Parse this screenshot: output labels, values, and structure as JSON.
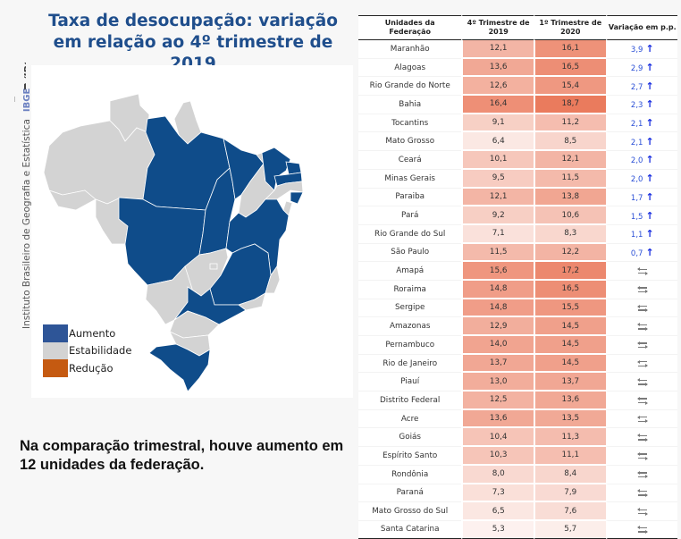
{
  "sidebar": {
    "logo_text": "IBGE",
    "institute": "Instituto Brasileiro de Geografia e Estatística",
    "short": "IBGE"
  },
  "title": "Taxa de desocupação: variação em relação ao 4º trimestre de 2019",
  "footnote": "Na comparação trimestral, houve aumento em 12 unidades da federação.",
  "colors": {
    "aumento": "#0f4c8a",
    "estabilidade": "#d3d3d3",
    "reducao": "#c55a11",
    "title": "#1f4e8c",
    "up_arrow": "#1a2fe0"
  },
  "legend": [
    {
      "label": "Aumento",
      "color": "#2e5597"
    },
    {
      "label": "Estabilidade",
      "color": "#d3d3d3"
    },
    {
      "label": "Redução",
      "color": "#c55a11"
    }
  ],
  "chart_data": {
    "type": "table",
    "title": "Taxa de desocupação: variação em relação ao 4º trimestre de 2019",
    "columns": [
      "Unidades da Federação",
      "4º Trimestre de 2019",
      "1º Trimestre de 2020",
      "Variação em p.p."
    ],
    "rows": [
      {
        "uf": "Maranhão",
        "t4_2019": "12,1",
        "t1_2020": "16,1",
        "var": "3,9",
        "status": "up"
      },
      {
        "uf": "Alagoas",
        "t4_2019": "13,6",
        "t1_2020": "16,5",
        "var": "2,9",
        "status": "up"
      },
      {
        "uf": "Rio Grande do Norte",
        "t4_2019": "12,6",
        "t1_2020": "15,4",
        "var": "2,7",
        "status": "up"
      },
      {
        "uf": "Bahia",
        "t4_2019": "16,4",
        "t1_2020": "18,7",
        "var": "2,3",
        "status": "up"
      },
      {
        "uf": "Tocantins",
        "t4_2019": "9,1",
        "t1_2020": "11,2",
        "var": "2,1",
        "status": "up"
      },
      {
        "uf": "Mato Grosso",
        "t4_2019": "6,4",
        "t1_2020": "8,5",
        "var": "2,1",
        "status": "up"
      },
      {
        "uf": "Ceará",
        "t4_2019": "10,1",
        "t1_2020": "12,1",
        "var": "2,0",
        "status": "up"
      },
      {
        "uf": "Minas Gerais",
        "t4_2019": "9,5",
        "t1_2020": "11,5",
        "var": "2,0",
        "status": "up"
      },
      {
        "uf": "Paraiba",
        "t4_2019": "12,1",
        "t1_2020": "13,8",
        "var": "1,7",
        "status": "up"
      },
      {
        "uf": "Pará",
        "t4_2019": "9,2",
        "t1_2020": "10,6",
        "var": "1,5",
        "status": "up"
      },
      {
        "uf": "Rio Grande do Sul",
        "t4_2019": "7,1",
        "t1_2020": "8,3",
        "var": "1,1",
        "status": "up"
      },
      {
        "uf": "São Paulo",
        "t4_2019": "11,5",
        "t1_2020": "12,2",
        "var": "0,7",
        "status": "up"
      },
      {
        "uf": "Amapá",
        "t4_2019": "15,6",
        "t1_2020": "17,2",
        "var": "",
        "status": "stable"
      },
      {
        "uf": "Roraima",
        "t4_2019": "14,8",
        "t1_2020": "16,5",
        "var": "",
        "status": "stable"
      },
      {
        "uf": "Sergipe",
        "t4_2019": "14,8",
        "t1_2020": "15,5",
        "var": "",
        "status": "stable"
      },
      {
        "uf": "Amazonas",
        "t4_2019": "12,9",
        "t1_2020": "14,5",
        "var": "",
        "status": "stable"
      },
      {
        "uf": "Pernambuco",
        "t4_2019": "14,0",
        "t1_2020": "14,5",
        "var": "",
        "status": "stable"
      },
      {
        "uf": "Rio de Janeiro",
        "t4_2019": "13,7",
        "t1_2020": "14,5",
        "var": "",
        "status": "stable"
      },
      {
        "uf": "Piauí",
        "t4_2019": "13,0",
        "t1_2020": "13,7",
        "var": "",
        "status": "stable"
      },
      {
        "uf": "Distrito Federal",
        "t4_2019": "12,5",
        "t1_2020": "13,6",
        "var": "",
        "status": "stable"
      },
      {
        "uf": "Acre",
        "t4_2019": "13,6",
        "t1_2020": "13,5",
        "var": "",
        "status": "stable"
      },
      {
        "uf": "Goiás",
        "t4_2019": "10,4",
        "t1_2020": "11,3",
        "var": "",
        "status": "stable"
      },
      {
        "uf": "Espírito Santo",
        "t4_2019": "10,3",
        "t1_2020": "11,1",
        "var": "",
        "status": "stable"
      },
      {
        "uf": "Rondônia",
        "t4_2019": "8,0",
        "t1_2020": "8,4",
        "var": "",
        "status": "stable"
      },
      {
        "uf": "Paraná",
        "t4_2019": "7,3",
        "t1_2020": "7,9",
        "var": "",
        "status": "stable"
      },
      {
        "uf": "Mato Grosso do Sul",
        "t4_2019": "6,5",
        "t1_2020": "7,6",
        "var": "",
        "status": "stable"
      },
      {
        "uf": "Santa Catarina",
        "t4_2019": "5,3",
        "t1_2020": "5,7",
        "var": "",
        "status": "stable"
      }
    ],
    "map": {
      "aumento": [
        "MA",
        "AL",
        "RN",
        "BA",
        "TO",
        "MT",
        "CE",
        "MG",
        "PB",
        "PA",
        "RS",
        "SP"
      ],
      "estabilidade": [
        "AP",
        "RR",
        "SE",
        "AM",
        "PE",
        "RJ",
        "PI",
        "DF",
        "AC",
        "GO",
        "ES",
        "RO",
        "PR",
        "MS",
        "SC"
      ],
      "reducao": []
    }
  }
}
